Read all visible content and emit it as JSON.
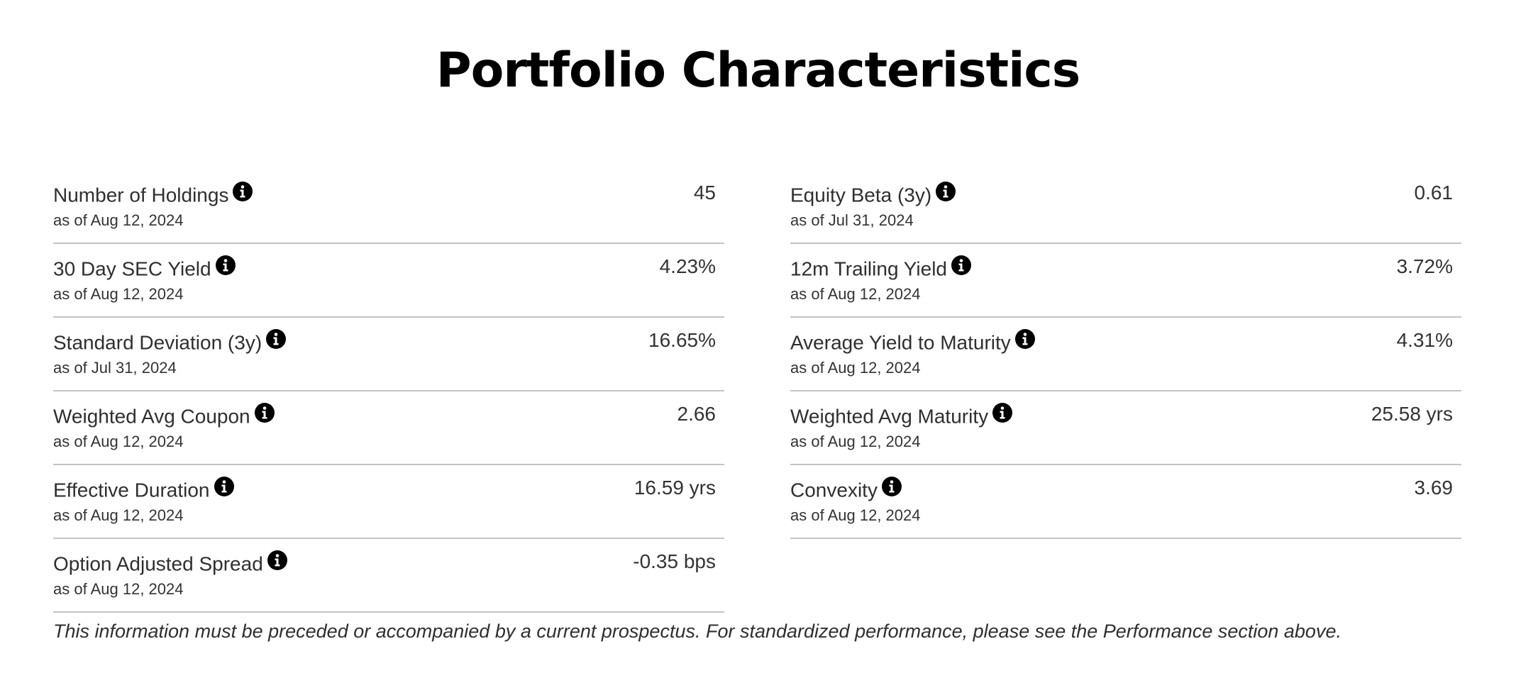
{
  "page": {
    "title": "Portfolio Characteristics",
    "disclaimer": "This information must be preceded or accompanied by a current prospectus. For standardized performance, please see the Performance section above."
  },
  "left_column": [
    {
      "label": "Number of Holdings",
      "date": "as of Aug 12, 2024",
      "value": "45"
    },
    {
      "label": "30 Day SEC Yield",
      "date": "as of Aug 12, 2024",
      "value": "4.23%"
    },
    {
      "label": "Standard Deviation (3y)",
      "date": "as of Jul 31, 2024",
      "value": "16.65%"
    },
    {
      "label": "Weighted Avg Coupon",
      "date": "as of Aug 12, 2024",
      "value": "2.66"
    },
    {
      "label": "Effective Duration",
      "date": "as of Aug 12, 2024",
      "value": "16.59 yrs"
    },
    {
      "label": "Option Adjusted Spread",
      "date": "as of Aug 12, 2024",
      "value": "-0.35 bps"
    }
  ],
  "right_column": [
    {
      "label": "Equity Beta (3y)",
      "date": "as of Jul 31, 2024",
      "value": "0.61"
    },
    {
      "label": "12m Trailing Yield",
      "date": "as of Aug 12, 2024",
      "value": "3.72%"
    },
    {
      "label": "Average Yield to Maturity",
      "date": "as of Aug 12, 2024",
      "value": "4.31%"
    },
    {
      "label": "Weighted Avg Maturity",
      "date": "as of Aug 12, 2024",
      "value": "25.58 yrs"
    },
    {
      "label": "Convexity",
      "date": "as of Aug 12, 2024",
      "value": "3.69"
    }
  ],
  "icons": {
    "info": "info-icon"
  },
  "colors": {
    "text": "#2f2f2f",
    "title": "#000000",
    "divider": "#c4c4c4",
    "icon": "#000000"
  }
}
